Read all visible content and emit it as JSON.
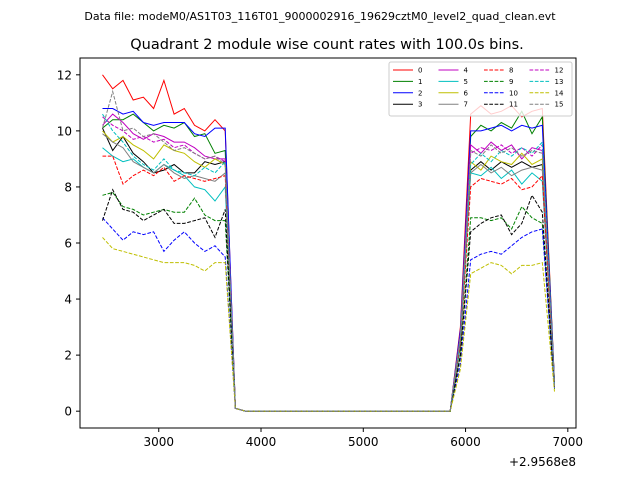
{
  "suptitle": "Data file: modeM0/AS1T03_116T01_9000002916_19629cztM0_level2_quad_clean.evt",
  "chart_data": {
    "type": "line",
    "title": "Quadrant 2 module wise count rates with 100.0s bins.",
    "xlabel": "",
    "ylabel": "",
    "x_offset_label": "+2.9568e8",
    "xlim": [
      2230,
      7080
    ],
    "ylim": [
      -0.6,
      12.6
    ],
    "xticks": [
      3000,
      4000,
      5000,
      6000,
      7000
    ],
    "yticks": [
      0,
      2,
      4,
      6,
      8,
      10,
      12
    ],
    "legend_position": "upper-right",
    "legend_columns": 4,
    "x": [
      2450,
      2550,
      2650,
      2750,
      2850,
      2950,
      3050,
      3150,
      3250,
      3350,
      3450,
      3550,
      3650,
      3750,
      3850,
      3950,
      4050,
      4150,
      4250,
      4350,
      4450,
      4550,
      4650,
      4750,
      4850,
      4950,
      5050,
      5150,
      5250,
      5350,
      5450,
      5550,
      5650,
      5750,
      5850,
      5950,
      6050,
      6150,
      6250,
      6350,
      6450,
      6550,
      6650,
      6750,
      6870
    ],
    "series": [
      {
        "name": "0",
        "color": "#ff0000",
        "dashed": false,
        "values": [
          12.0,
          11.5,
          11.8,
          11.1,
          11.2,
          10.8,
          11.8,
          10.6,
          10.8,
          10.2,
          10.0,
          10.4,
          10.0,
          0.1,
          0.0,
          0.0,
          0.0,
          0.0,
          0.0,
          0.0,
          0.0,
          0.0,
          0.0,
          0.0,
          0.0,
          0.0,
          0.0,
          0.0,
          0.0,
          0.0,
          0.0,
          0.0,
          0.0,
          0.0,
          0.0,
          3.0,
          10.6,
          10.9,
          10.6,
          10.7,
          10.9,
          10.5,
          10.7,
          10.8,
          1.0
        ]
      },
      {
        "name": "1",
        "color": "#008000",
        "dashed": false,
        "values": [
          10.1,
          10.4,
          10.4,
          10.6,
          10.3,
          10.0,
          10.2,
          10.1,
          10.3,
          9.8,
          9.9,
          9.2,
          9.3,
          0.1,
          0.0,
          0.0,
          0.0,
          0.0,
          0.0,
          0.0,
          0.0,
          0.0,
          0.0,
          0.0,
          0.0,
          0.0,
          0.0,
          0.0,
          0.0,
          0.0,
          0.0,
          0.0,
          0.0,
          0.0,
          0.0,
          2.8,
          9.8,
          10.2,
          10.0,
          10.3,
          10.1,
          10.7,
          9.9,
          10.5,
          1.0
        ]
      },
      {
        "name": "2",
        "color": "#0000ff",
        "dashed": false,
        "values": [
          10.8,
          10.8,
          10.6,
          10.7,
          10.3,
          10.2,
          10.3,
          10.3,
          10.3,
          9.9,
          9.8,
          10.1,
          10.1,
          0.1,
          0.0,
          0.0,
          0.0,
          0.0,
          0.0,
          0.0,
          0.0,
          0.0,
          0.0,
          0.0,
          0.0,
          0.0,
          0.0,
          0.0,
          0.0,
          0.0,
          0.0,
          0.0,
          0.0,
          0.0,
          0.0,
          2.9,
          10.0,
          10.0,
          10.1,
          10.2,
          10.0,
          10.2,
          10.1,
          10.2,
          1.0
        ]
      },
      {
        "name": "3",
        "color": "#000000",
        "dashed": false,
        "values": [
          10.1,
          9.3,
          9.8,
          9.2,
          8.9,
          8.5,
          8.6,
          8.8,
          8.5,
          8.5,
          8.9,
          8.8,
          8.9,
          0.1,
          0.0,
          0.0,
          0.0,
          0.0,
          0.0,
          0.0,
          0.0,
          0.0,
          0.0,
          0.0,
          0.0,
          0.0,
          0.0,
          0.0,
          0.0,
          0.0,
          0.0,
          0.0,
          0.0,
          0.0,
          0.0,
          2.5,
          8.6,
          8.9,
          8.6,
          8.9,
          8.7,
          8.9,
          8.7,
          8.8,
          0.9
        ]
      },
      {
        "name": "4",
        "color": "#c000c0",
        "dashed": false,
        "values": [
          10.2,
          10.6,
          10.3,
          9.9,
          9.7,
          9.9,
          9.8,
          9.6,
          9.6,
          9.4,
          9.1,
          9.0,
          9.0,
          0.1,
          0.0,
          0.0,
          0.0,
          0.0,
          0.0,
          0.0,
          0.0,
          0.0,
          0.0,
          0.0,
          0.0,
          0.0,
          0.0,
          0.0,
          0.0,
          0.0,
          0.0,
          0.0,
          0.0,
          0.0,
          0.0,
          2.7,
          9.5,
          9.2,
          9.6,
          9.3,
          9.5,
          9.0,
          9.4,
          9.3,
          0.9
        ]
      },
      {
        "name": "5",
        "color": "#00bfbf",
        "dashed": false,
        "values": [
          9.4,
          9.1,
          8.9,
          9.0,
          8.7,
          8.5,
          8.8,
          8.6,
          8.4,
          8.0,
          7.9,
          7.5,
          8.0,
          0.1,
          0.0,
          0.0,
          0.0,
          0.0,
          0.0,
          0.0,
          0.0,
          0.0,
          0.0,
          0.0,
          0.0,
          0.0,
          0.0,
          0.0,
          0.0,
          0.0,
          0.0,
          0.0,
          0.0,
          0.0,
          0.0,
          2.3,
          8.5,
          8.4,
          8.7,
          8.3,
          8.6,
          8.1,
          8.5,
          8.2,
          0.9
        ]
      },
      {
        "name": "6",
        "color": "#bfbf00",
        "dashed": false,
        "values": [
          10.0,
          9.6,
          9.8,
          9.5,
          9.3,
          9.0,
          9.5,
          9.3,
          9.2,
          8.9,
          8.7,
          9.0,
          8.8,
          0.1,
          0.0,
          0.0,
          0.0,
          0.0,
          0.0,
          0.0,
          0.0,
          0.0,
          0.0,
          0.0,
          0.0,
          0.0,
          0.0,
          0.0,
          0.0,
          0.0,
          0.0,
          0.0,
          0.0,
          0.0,
          0.0,
          2.6,
          8.9,
          8.6,
          9.1,
          8.9,
          8.8,
          9.2,
          8.8,
          9.0,
          0.9
        ]
      },
      {
        "name": "7",
        "color": "#808080",
        "dashed": false,
        "values": [
          9.9,
          9.6,
          9.4,
          8.9,
          8.7,
          8.5,
          8.8,
          8.5,
          8.3,
          8.4,
          8.3,
          8.2,
          8.5,
          0.1,
          0.0,
          0.0,
          0.0,
          0.0,
          0.0,
          0.0,
          0.0,
          0.0,
          0.0,
          0.0,
          0.0,
          0.0,
          0.0,
          0.0,
          0.0,
          0.0,
          0.0,
          0.0,
          0.0,
          0.0,
          0.0,
          2.5,
          8.5,
          8.8,
          8.5,
          8.7,
          8.4,
          8.6,
          8.7,
          8.6,
          0.9
        ]
      },
      {
        "name": "8",
        "color": "#ff0000",
        "dashed": true,
        "values": [
          9.1,
          9.1,
          8.1,
          8.4,
          8.6,
          8.4,
          8.7,
          8.2,
          8.4,
          8.3,
          8.2,
          8.3,
          8.4,
          0.1,
          0.0,
          0.0,
          0.0,
          0.0,
          0.0,
          0.0,
          0.0,
          0.0,
          0.0,
          0.0,
          0.0,
          0.0,
          0.0,
          0.0,
          0.0,
          0.0,
          0.0,
          0.0,
          0.0,
          0.0,
          0.0,
          2.4,
          8.0,
          8.3,
          8.2,
          8.1,
          8.3,
          7.9,
          8.0,
          8.4,
          0.9
        ]
      },
      {
        "name": "9",
        "color": "#008000",
        "dashed": true,
        "values": [
          7.7,
          7.8,
          7.3,
          7.2,
          7.0,
          7.1,
          7.2,
          7.1,
          7.1,
          7.6,
          7.0,
          6.8,
          6.8,
          0.1,
          0.0,
          0.0,
          0.0,
          0.0,
          0.0,
          0.0,
          0.0,
          0.0,
          0.0,
          0.0,
          0.0,
          0.0,
          0.0,
          0.0,
          0.0,
          0.0,
          0.0,
          0.0,
          0.0,
          0.0,
          0.0,
          2.0,
          6.9,
          6.9,
          6.8,
          6.9,
          6.5,
          7.3,
          6.9,
          6.7,
          0.8
        ]
      },
      {
        "name": "10",
        "color": "#0000ff",
        "dashed": true,
        "values": [
          6.9,
          6.5,
          6.1,
          6.4,
          6.3,
          6.4,
          5.7,
          6.1,
          6.4,
          6.0,
          5.7,
          5.9,
          5.5,
          0.1,
          0.0,
          0.0,
          0.0,
          0.0,
          0.0,
          0.0,
          0.0,
          0.0,
          0.0,
          0.0,
          0.0,
          0.0,
          0.0,
          0.0,
          0.0,
          0.0,
          0.0,
          0.0,
          0.0,
          0.0,
          0.0,
          1.7,
          5.4,
          5.6,
          5.7,
          5.6,
          5.9,
          6.2,
          6.4,
          6.5,
          0.8
        ]
      },
      {
        "name": "11",
        "color": "#000000",
        "dashed": true,
        "values": [
          6.8,
          7.9,
          7.2,
          7.1,
          6.8,
          7.0,
          7.2,
          6.7,
          6.7,
          6.8,
          6.9,
          6.2,
          7.2,
          0.1,
          0.0,
          0.0,
          0.0,
          0.0,
          0.0,
          0.0,
          0.0,
          0.0,
          0.0,
          0.0,
          0.0,
          0.0,
          0.0,
          0.0,
          0.0,
          0.0,
          0.0,
          0.0,
          0.0,
          0.0,
          0.0,
          2.0,
          6.4,
          6.7,
          6.9,
          7.0,
          6.3,
          6.7,
          7.7,
          7.1,
          0.8
        ]
      },
      {
        "name": "12",
        "color": "#c000c0",
        "dashed": true,
        "values": [
          10.5,
          10.2,
          10.0,
          9.7,
          9.8,
          9.6,
          9.7,
          9.4,
          9.5,
          9.2,
          9.0,
          9.1,
          8.9,
          0.1,
          0.0,
          0.0,
          0.0,
          0.0,
          0.0,
          0.0,
          0.0,
          0.0,
          0.0,
          0.0,
          0.0,
          0.0,
          0.0,
          0.0,
          0.0,
          0.0,
          0.0,
          0.0,
          0.0,
          0.0,
          0.0,
          2.7,
          9.2,
          9.4,
          9.3,
          9.5,
          9.2,
          9.4,
          9.1,
          9.5,
          0.9
        ]
      },
      {
        "name": "13",
        "color": "#00bfbf",
        "dashed": true,
        "values": [
          10.6,
          10.0,
          9.6,
          9.1,
          8.8,
          8.6,
          9.0,
          8.6,
          8.5,
          8.4,
          8.7,
          8.5,
          8.9,
          0.1,
          0.0,
          0.0,
          0.0,
          0.0,
          0.0,
          0.0,
          0.0,
          0.0,
          0.0,
          0.0,
          0.0,
          0.0,
          0.0,
          0.0,
          0.0,
          0.0,
          0.0,
          0.0,
          0.0,
          0.0,
          0.0,
          2.6,
          8.8,
          9.2,
          8.9,
          9.3,
          9.1,
          9.4,
          9.2,
          9.6,
          0.9
        ]
      },
      {
        "name": "14",
        "color": "#bfbf00",
        "dashed": true,
        "values": [
          6.2,
          5.8,
          5.7,
          5.6,
          5.5,
          5.4,
          5.3,
          5.3,
          5.3,
          5.2,
          5.0,
          5.3,
          5.3,
          0.1,
          0.0,
          0.0,
          0.0,
          0.0,
          0.0,
          0.0,
          0.0,
          0.0,
          0.0,
          0.0,
          0.0,
          0.0,
          0.0,
          0.0,
          0.0,
          0.0,
          0.0,
          0.0,
          0.0,
          0.0,
          0.0,
          1.5,
          4.9,
          5.1,
          5.3,
          5.2,
          4.9,
          5.2,
          5.2,
          5.3,
          0.7
        ]
      },
      {
        "name": "15",
        "color": "#808080",
        "dashed": true,
        "values": [
          10.1,
          11.4,
          10.0,
          10.1,
          9.8,
          9.9,
          9.6,
          9.3,
          9.4,
          9.2,
          9.0,
          9.1,
          8.8,
          0.1,
          0.0,
          0.0,
          0.0,
          0.0,
          0.0,
          0.0,
          0.0,
          0.0,
          0.0,
          0.0,
          0.0,
          0.0,
          0.0,
          0.0,
          0.0,
          0.0,
          0.0,
          0.0,
          0.0,
          0.0,
          0.0,
          2.7,
          9.3,
          9.1,
          9.5,
          9.2,
          9.4,
          9.1,
          9.3,
          9.2,
          0.9
        ]
      }
    ]
  }
}
